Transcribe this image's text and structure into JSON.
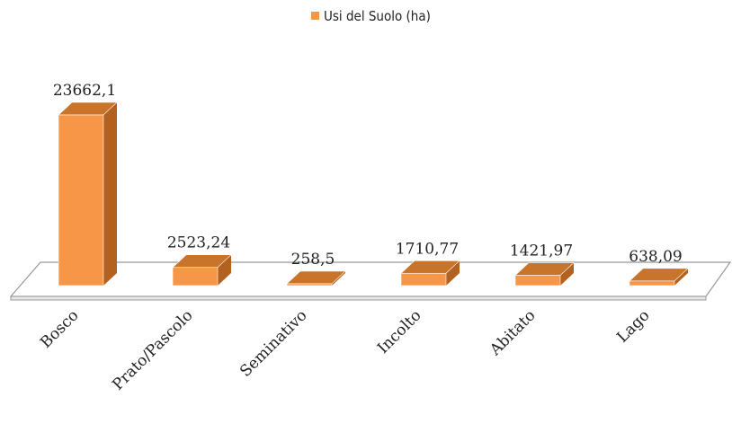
{
  "chart_data": {
    "type": "bar3d",
    "series": [
      {
        "name": "Usi del Suolo (ha)",
        "color": "#f79646",
        "values": [
          23662.1,
          2523.24,
          258.5,
          1710.77,
          1421.97,
          638.09
        ],
        "value_labels": [
          "23662,1",
          "2523,24",
          "258,5",
          "1710,77",
          "1421,97",
          "638,09"
        ]
      }
    ],
    "categories": [
      "Bosco",
      "Prato/Pascolo",
      "Seminativo",
      "Incolto",
      "Abitato",
      "Lago"
    ],
    "legend": "top"
  }
}
